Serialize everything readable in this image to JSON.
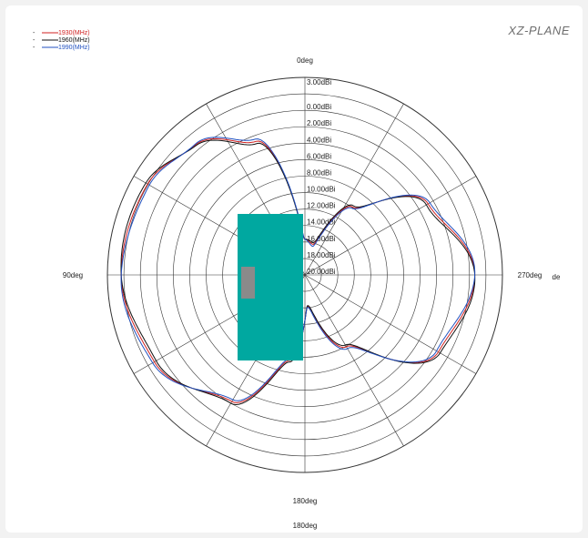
{
  "plane_label": "XZ-PLANE",
  "chart_data": {
    "type": "polar-line",
    "title": "",
    "radial_axis": {
      "tick_labels": [
        "0.00dBi",
        "2.00dBi",
        "4.00dBi",
        "6.00dBi",
        "8.00dBi",
        "10.00dBi",
        "12.00dBi",
        "14.00dBi",
        "16.00dBi",
        "18.00dBi",
        "20.00dBi"
      ],
      "top_label": "3.00dBi",
      "rings": 12
    },
    "angle_labels": {
      "top": "0deg",
      "left": "90deg",
      "right": "270deg",
      "bottom": "180deg",
      "bottom_extra": "180deg",
      "right_extra": "de"
    },
    "angular_grid_step_deg": 30,
    "series": [
      {
        "name": "1930(MHz)",
        "color": "#d02020"
      },
      {
        "name": "1960(MHz)",
        "color": "#111111"
      },
      {
        "name": "1990(MHz)",
        "color": "#2050c0"
      }
    ],
    "pattern_points": [
      {
        "angle_deg": 0,
        "r_norm": 0.18
      },
      {
        "angle_deg": 20,
        "r_norm": 0.72
      },
      {
        "angle_deg": 40,
        "r_norm": 0.86
      },
      {
        "angle_deg": 60,
        "r_norm": 0.92
      },
      {
        "angle_deg": 90,
        "r_norm": 0.93
      },
      {
        "angle_deg": 120,
        "r_norm": 0.88
      },
      {
        "angle_deg": 150,
        "r_norm": 0.74
      },
      {
        "angle_deg": 170,
        "r_norm": 0.44
      },
      {
        "angle_deg": 185,
        "r_norm": 0.16
      },
      {
        "angle_deg": 210,
        "r_norm": 0.42
      },
      {
        "angle_deg": 240,
        "r_norm": 0.78
      },
      {
        "angle_deg": 270,
        "r_norm": 0.86
      },
      {
        "angle_deg": 300,
        "r_norm": 0.72
      },
      {
        "angle_deg": 325,
        "r_norm": 0.42
      },
      {
        "angle_deg": 345,
        "r_norm": 0.16
      },
      {
        "angle_deg": 360,
        "r_norm": 0.18
      }
    ],
    "grid": true
  },
  "overlay_colors": {
    "teal": "#00a8a0",
    "gray": "#8a8a8a"
  }
}
